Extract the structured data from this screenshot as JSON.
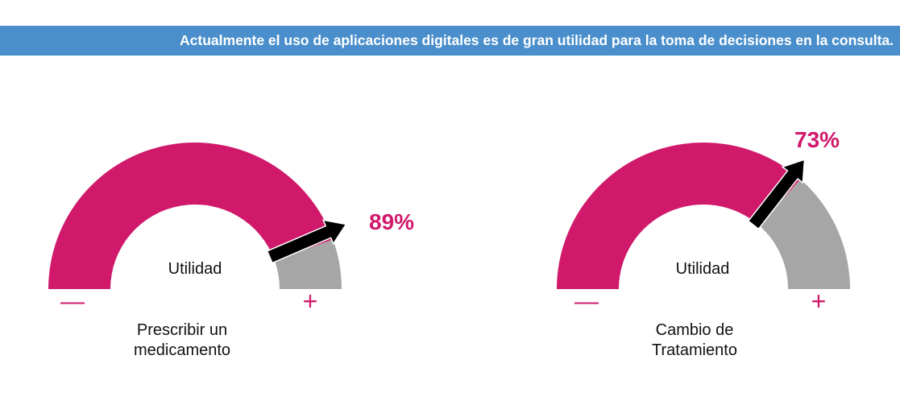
{
  "banner": {
    "text": "Actualmente el uso de aplicaciones digitales es de gran utilidad para la toma de decisiones en la consulta."
  },
  "colors": {
    "fill": "#d0196b",
    "rest": "#a6a6a6",
    "arrow": "#000000",
    "banner": "#4a8fcc"
  },
  "chart_data": [
    {
      "type": "gauge",
      "title_lines": [
        "Prescribir un",
        "medicamento"
      ],
      "center_label": "Utilidad",
      "value": 89,
      "value_label": "89%",
      "min_label": "—",
      "max_label": "+",
      "range": [
        0,
        100
      ]
    },
    {
      "type": "gauge",
      "title_lines": [
        "Cambio de",
        "Tratamiento"
      ],
      "center_label": "Utilidad",
      "value": 73,
      "value_label": "73%",
      "min_label": "—",
      "max_label": "+",
      "range": [
        0,
        100
      ]
    }
  ]
}
